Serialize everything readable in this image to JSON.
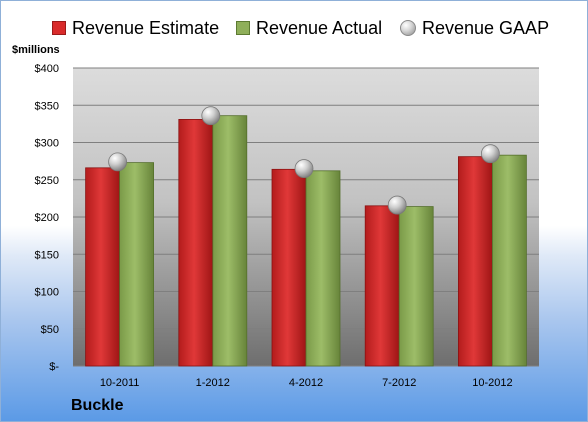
{
  "chart_data": {
    "type": "bar",
    "categories": [
      "10-2011",
      "1-2012",
      "4-2012",
      "7-2012",
      "10-2012"
    ],
    "series": [
      {
        "name": "Revenue Estimate",
        "values": [
          266,
          331,
          264,
          215,
          281
        ],
        "color": "#d92b2b"
      },
      {
        "name": "Revenue Actual",
        "values": [
          273,
          336,
          262,
          214,
          283
        ],
        "color": "#8faf5a"
      },
      {
        "name": "Revenue GAAP",
        "values": [
          274,
          336,
          265,
          216,
          285
        ],
        "color": "#b3b3b3",
        "marker": "sphere"
      }
    ],
    "y_unit_label": "$millions",
    "ylim": [
      0,
      400
    ],
    "y_ticks": [
      0,
      50,
      100,
      150,
      200,
      250,
      300,
      350,
      400
    ],
    "y_tick_labels": [
      "$-",
      "$50",
      "$100",
      "$150",
      "$200",
      "$250",
      "$300",
      "$350",
      "$400"
    ],
    "grid": true,
    "legend_position": "top",
    "company": "Buckle"
  }
}
